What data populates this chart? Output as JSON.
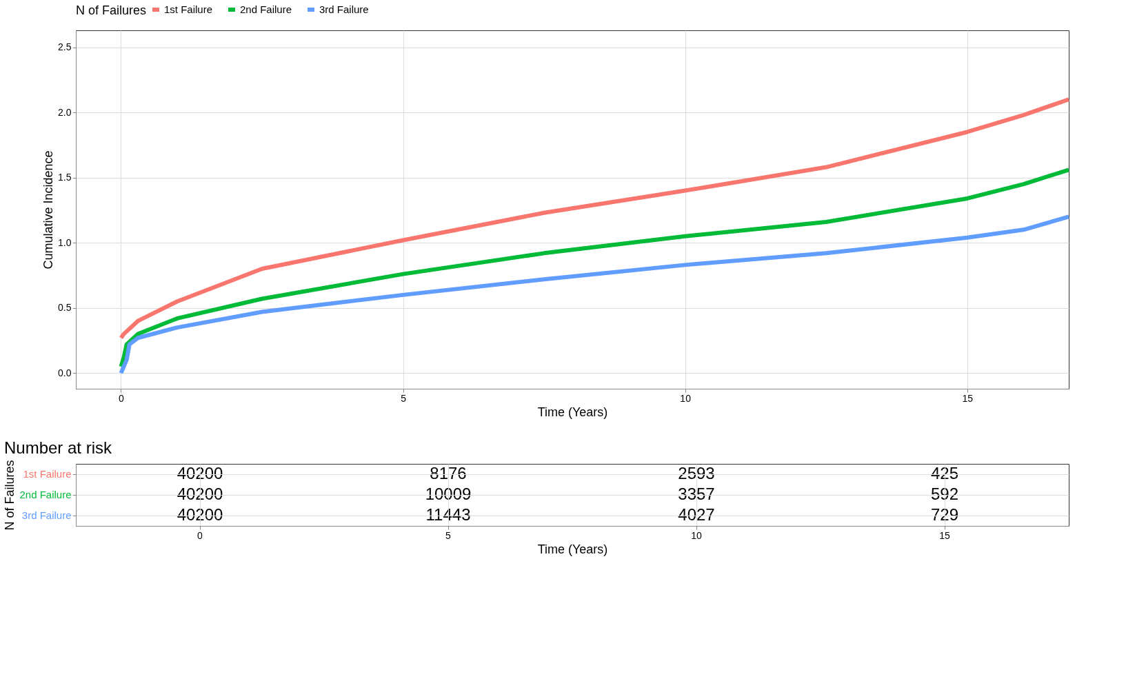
{
  "chart_data": [
    {
      "type": "line",
      "xlabel": "Time (Years)",
      "ylabel": "Cumulative Incidence",
      "legend_title": "N of Failures",
      "legend": "top",
      "grid": true,
      "line_style": "solid",
      "xlim": [
        -0.8,
        16.8
      ],
      "xticks": [
        0,
        5,
        10,
        15
      ],
      "ylim": [
        -0.12,
        2.63
      ],
      "yticks": [
        {
          "value": 0,
          "label": "0.0"
        },
        0.5,
        {
          "value": 1,
          "label": "1.0"
        },
        1.5,
        {
          "value": 2,
          "label": "2.0"
        },
        2.5
      ],
      "series": [
        {
          "name": "1st Failure",
          "color": "#f8766d",
          "x": [
            0,
            0.05,
            0.3,
            1,
            2.5,
            5,
            7.5,
            10,
            12.5,
            15,
            16,
            16.8
          ],
          "values": [
            0.27,
            0.3,
            0.4,
            0.55,
            0.8,
            1.02,
            1.23,
            1.4,
            1.58,
            1.85,
            1.98,
            2.1
          ]
        },
        {
          "name": "2nd Failure",
          "color": "#00ba38",
          "x": [
            0,
            0.05,
            0.1,
            0.3,
            1,
            2.5,
            5,
            7.5,
            10,
            12.5,
            15,
            16,
            16.8
          ],
          "values": [
            0.05,
            0.12,
            0.22,
            0.3,
            0.42,
            0.57,
            0.76,
            0.92,
            1.05,
            1.16,
            1.34,
            1.45,
            1.56
          ]
        },
        {
          "name": "3rd Failure",
          "color": "#619cff",
          "x": [
            0,
            0.05,
            0.1,
            0.15,
            0.3,
            1,
            2.5,
            5,
            7.5,
            10,
            12.5,
            15,
            16,
            16.8
          ],
          "values": [
            0.0,
            0.05,
            0.1,
            0.22,
            0.27,
            0.35,
            0.47,
            0.6,
            0.72,
            0.83,
            0.92,
            1.04,
            1.1,
            1.2
          ]
        }
      ]
    },
    {
      "type": "heatmap",
      "grid": true,
      "title": "Number at risk",
      "xlabel": "Time (Years)",
      "ylabel": "N of Failures",
      "data_labels": true,
      "categories": [
        "0",
        "5",
        "10",
        "15"
      ],
      "y_categories": [
        "1st Failure",
        "2nd Failure",
        "3rd Failure"
      ],
      "cells": [
        [
          40200,
          8176,
          2593,
          425
        ],
        [
          40200,
          10009,
          3357,
          592
        ],
        [
          40200,
          11443,
          4027,
          729
        ]
      ]
    }
  ]
}
